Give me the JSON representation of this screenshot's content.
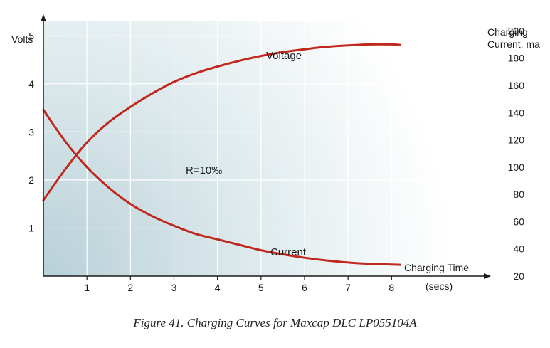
{
  "caption": "Figure 41.  Charging Curves for Maxcap DLC LP055104A",
  "chart_data": {
    "type": "line",
    "title": "",
    "xlabel": "Charging Time",
    "xunit": "(secs)",
    "ylabel_left": "Volts",
    "ylabel_right": [
      "Charging",
      "Current, ma"
    ],
    "x_ticks": [
      1,
      2,
      3,
      4,
      5,
      6,
      7,
      8
    ],
    "left_ticks": [
      1,
      2,
      3,
      4,
      5
    ],
    "right_ticks": [
      20,
      40,
      60,
      80,
      100,
      120,
      140,
      160,
      180,
      200
    ],
    "xlim": [
      0,
      10.3
    ],
    "ylim_left": [
      0,
      5.3
    ],
    "ylim_right": [
      20,
      207
    ],
    "grid": true,
    "annotation": "R=10‰",
    "colors": {
      "curve": "#c0281e",
      "axis": "#1a1a1a",
      "grid": "#ffffff",
      "bg_dark": "#b9d2d8"
    },
    "series": [
      {
        "name": "Voltage",
        "axis": "left",
        "x": [
          0,
          0.5,
          1,
          1.5,
          2,
          2.5,
          3,
          3.5,
          4,
          4.5,
          5,
          5.5,
          6,
          6.5,
          7,
          7.5,
          8,
          8.2
        ],
        "y": [
          1.58,
          2.22,
          2.78,
          3.2,
          3.52,
          3.8,
          4.04,
          4.22,
          4.36,
          4.48,
          4.58,
          4.66,
          4.72,
          4.77,
          4.8,
          4.82,
          4.82,
          4.81
        ]
      },
      {
        "name": "Current",
        "axis": "right",
        "x": [
          0,
          0.5,
          1,
          1.5,
          2,
          2.5,
          3,
          3.5,
          4,
          4.5,
          5,
          5.5,
          6,
          6.5,
          7,
          7.5,
          8,
          8.2
        ],
        "y": [
          142,
          119,
          100,
          85,
          73,
          64,
          57,
          51,
          47,
          43,
          39,
          36,
          33.5,
          31.5,
          30,
          29,
          28.5,
          28.3
        ]
      }
    ]
  }
}
